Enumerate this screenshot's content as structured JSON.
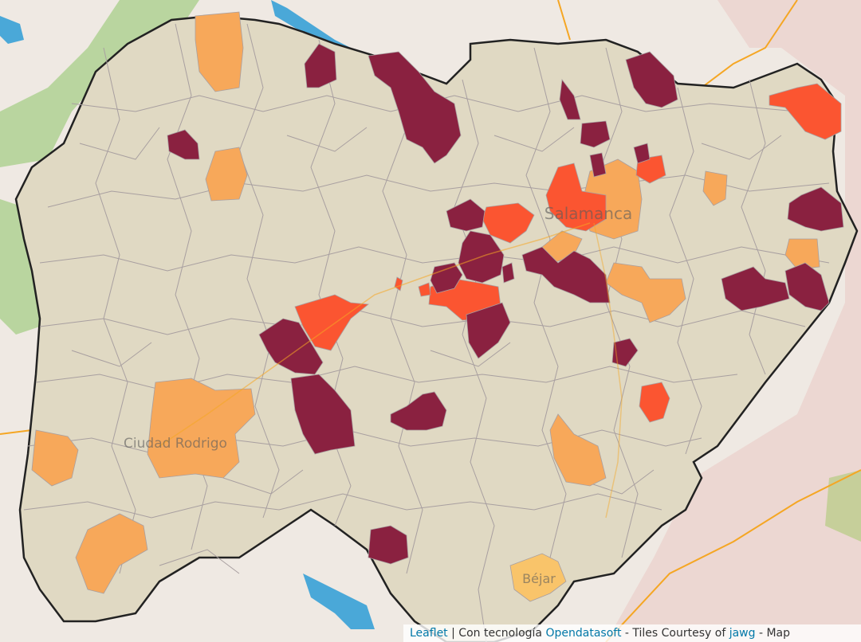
{
  "map": {
    "places": {
      "salamanca": "Salamanca",
      "ciudad_rodrigo": "Ciudad Rodrigo",
      "bejar": "Béjar"
    },
    "colors": {
      "background_outside": "#efe9e3",
      "province_fill": "#e0d9c3",
      "municipality_border": "#a89fa0",
      "province_border": "#222222",
      "water": "#4aa8d8",
      "forest": "#b9d59f",
      "road": "#f5a623",
      "level_1": "#f7a85a",
      "level_2": "#fb5531",
      "level_3": "#8a2140",
      "level_0": "#f9c46a"
    }
  },
  "attribution": {
    "leaflet": "Leaflet",
    "separator": "|",
    "powered_by": "Con tecnología",
    "provider": "Opendatasoft",
    "tiles": "- Tiles Courtesy of",
    "tiles_provider": "jawg",
    "map_tail": "- Map"
  }
}
